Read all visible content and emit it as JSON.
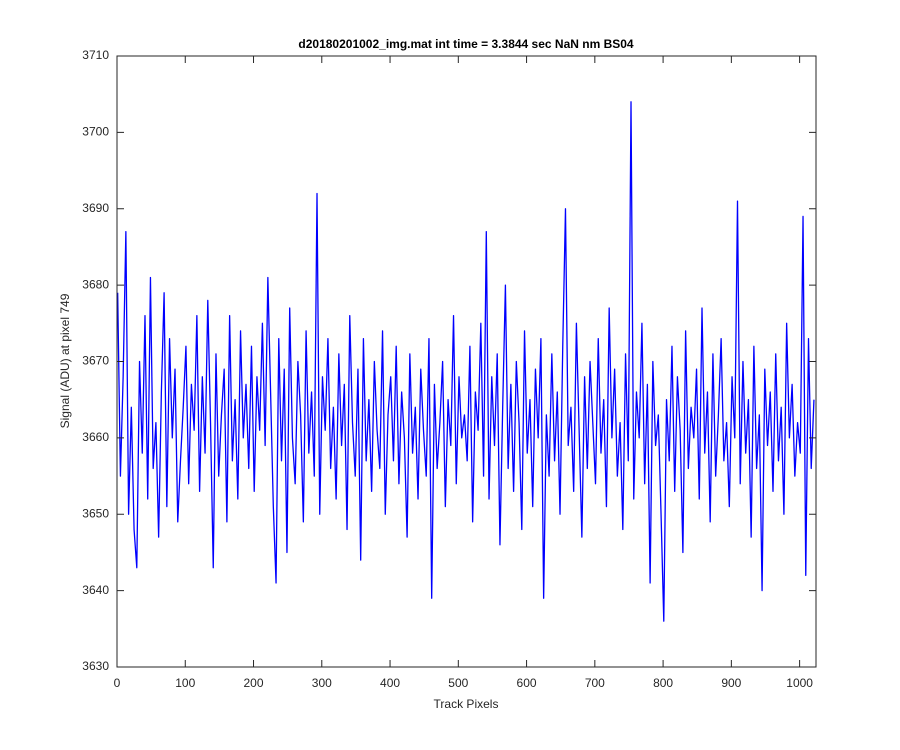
{
  "chart_data": {
    "type": "line",
    "title": "d20180201002_img.mat int time = 3.3844 sec  NaN nm BS04",
    "xlabel": "Track Pixels",
    "ylabel": "Signal (ADU) at pixel 749",
    "color": "#0000ff",
    "xlim": [
      0,
      1024
    ],
    "xticks": [
      0,
      100,
      200,
      300,
      400,
      500,
      600,
      700,
      800,
      900,
      1000
    ],
    "ylim": [
      3630,
      3710
    ],
    "yticks": [
      3630,
      3640,
      3650,
      3660,
      3670,
      3680,
      3690,
      3700,
      3710
    ],
    "x": [
      1,
      5,
      9,
      13,
      17,
      21,
      25,
      29,
      33,
      37,
      41,
      45,
      49,
      53,
      57,
      61,
      65,
      69,
      73,
      77,
      81,
      85,
      89,
      93,
      97,
      101,
      105,
      109,
      113,
      117,
      121,
      125,
      129,
      133,
      137,
      141,
      145,
      149,
      153,
      157,
      161,
      165,
      169,
      173,
      177,
      181,
      185,
      189,
      193,
      197,
      201,
      205,
      209,
      213,
      217,
      221,
      225,
      229,
      233,
      237,
      241,
      245,
      249,
      253,
      257,
      261,
      265,
      269,
      273,
      277,
      281,
      285,
      289,
      293,
      297,
      301,
      305,
      309,
      313,
      317,
      321,
      325,
      329,
      333,
      337,
      341,
      345,
      349,
      353,
      357,
      361,
      365,
      369,
      373,
      377,
      381,
      385,
      389,
      393,
      397,
      401,
      405,
      409,
      413,
      417,
      421,
      425,
      429,
      433,
      437,
      441,
      445,
      449,
      453,
      457,
      461,
      465,
      469,
      473,
      477,
      481,
      485,
      489,
      493,
      497,
      501,
      505,
      509,
      513,
      517,
      521,
      525,
      529,
      533,
      537,
      541,
      545,
      549,
      553,
      557,
      561,
      565,
      569,
      573,
      577,
      581,
      585,
      589,
      593,
      597,
      601,
      605,
      609,
      613,
      617,
      621,
      625,
      629,
      633,
      637,
      641,
      645,
      649,
      653,
      657,
      661,
      665,
      669,
      673,
      677,
      681,
      685,
      689,
      693,
      697,
      701,
      705,
      709,
      713,
      717,
      721,
      725,
      729,
      733,
      737,
      741,
      745,
      749,
      753,
      757,
      761,
      765,
      769,
      773,
      777,
      781,
      785,
      789,
      793,
      797,
      801,
      805,
      809,
      813,
      817,
      821,
      825,
      829,
      833,
      837,
      841,
      845,
      849,
      853,
      857,
      861,
      865,
      869,
      873,
      877,
      881,
      885,
      889,
      893,
      897,
      901,
      905,
      909,
      913,
      917,
      921,
      925,
      929,
      933,
      937,
      941,
      945,
      949,
      953,
      957,
      961,
      965,
      969,
      973,
      977,
      981,
      985,
      989,
      993,
      997,
      1001,
      1005,
      1009,
      1013,
      1017,
      1021
    ],
    "values": [
      3679,
      3655,
      3668,
      3687,
      3650,
      3664,
      3648,
      3643,
      3670,
      3658,
      3676,
      3652,
      3681,
      3656,
      3662,
      3647,
      3666,
      3679,
      3651,
      3673,
      3660,
      3669,
      3649,
      3657,
      3664,
      3672,
      3654,
      3667,
      3661,
      3676,
      3653,
      3668,
      3658,
      3678,
      3662,
      3643,
      3671,
      3655,
      3663,
      3669,
      3649,
      3676,
      3657,
      3665,
      3652,
      3674,
      3660,
      3667,
      3656,
      3672,
      3653,
      3668,
      3661,
      3675,
      3659,
      3681,
      3666,
      3651,
      3641,
      3673,
      3657,
      3669,
      3645,
      3677,
      3660,
      3654,
      3670,
      3663,
      3649,
      3674,
      3658,
      3666,
      3655,
      3692,
      3650,
      3668,
      3661,
      3673,
      3656,
      3664,
      3652,
      3671,
      3659,
      3667,
      3648,
      3676,
      3662,
      3655,
      3669,
      3644,
      3673,
      3657,
      3665,
      3653,
      3670,
      3661,
      3656,
      3674,
      3650,
      3663,
      3668,
      3657,
      3672,
      3654,
      3666,
      3660,
      3647,
      3671,
      3658,
      3664,
      3652,
      3669,
      3661,
      3655,
      3673,
      3639,
      3667,
      3656,
      3662,
      3670,
      3651,
      3665,
      3659,
      3676,
      3654,
      3668,
      3660,
      3663,
      3657,
      3672,
      3649,
      3666,
      3661,
      3675,
      3655,
      3687,
      3652,
      3668,
      3659,
      3671,
      3646,
      3664,
      3680,
      3656,
      3667,
      3653,
      3670,
      3662,
      3648,
      3674,
      3658,
      3665,
      3651,
      3669,
      3660,
      3673,
      3639,
      3663,
      3655,
      3671,
      3657,
      3666,
      3650,
      3672,
      3690,
      3659,
      3664,
      3653,
      3675,
      3661,
      3647,
      3668,
      3656,
      3670,
      3662,
      3654,
      3673,
      3658,
      3665,
      3651,
      3677,
      3660,
      3669,
      3655,
      3662,
      3648,
      3671,
      3657,
      3704,
      3652,
      3666,
      3660,
      3675,
      3654,
      3667,
      3641,
      3670,
      3659,
      3663,
      3650,
      3636,
      3665,
      3657,
      3672,
      3653,
      3668,
      3661,
      3645,
      3674,
      3656,
      3664,
      3660,
      3669,
      3652,
      3677,
      3658,
      3666,
      3649,
      3671,
      3655,
      3663,
      3673,
      3657,
      3662,
      3651,
      3668,
      3660,
      3691,
      3654,
      3670,
      3658,
      3665,
      3647,
      3672,
      3656,
      3663,
      3640,
      3669,
      3659,
      3666,
      3653,
      3671,
      3657,
      3664,
      3650,
      3675,
      3660,
      3667,
      3655,
      3662,
      3658,
      3689,
      3642,
      3673,
      3656,
      3665
    ]
  }
}
